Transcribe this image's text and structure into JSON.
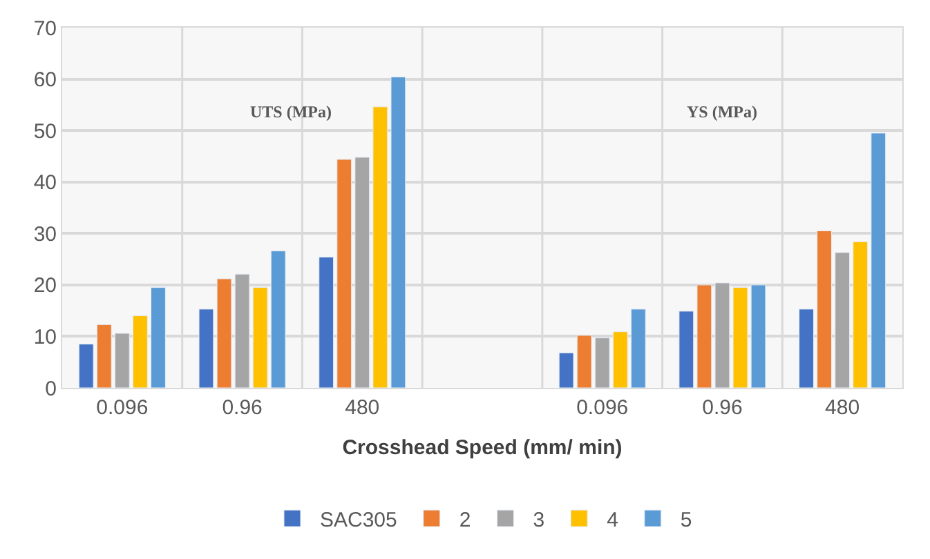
{
  "chart_data": {
    "type": "bar",
    "xlabel": "Crosshead Speed (mm/ min)",
    "categories": [
      "0.096",
      "0.96",
      "480",
      null,
      "0.096",
      "0.96",
      "480"
    ],
    "series": [
      {
        "name": "SAC305",
        "color": "#4472c4",
        "values": [
          8.5,
          15.3,
          25.4,
          null,
          6.8,
          14.9,
          15.3
        ]
      },
      {
        "name": "2",
        "color": "#ed7d31",
        "values": [
          12.3,
          21.2,
          44.4,
          null,
          10.2,
          20.0,
          30.5
        ]
      },
      {
        "name": "3",
        "color": "#a5a5a5",
        "values": [
          10.6,
          22.1,
          44.8,
          null,
          9.7,
          20.4,
          26.3
        ]
      },
      {
        "name": "4",
        "color": "#ffc000",
        "values": [
          14.0,
          19.5,
          54.6,
          null,
          10.9,
          19.5,
          28.4
        ]
      },
      {
        "name": "5",
        "color": "#5b9bd5",
        "values": [
          19.5,
          26.6,
          60.4,
          null,
          15.3,
          20.0,
          49.5
        ]
      }
    ],
    "ylim": [
      0,
      70
    ],
    "yticks": [
      0,
      10,
      20,
      30,
      40,
      50,
      60,
      70
    ],
    "annotations": [
      "UTS (MPa)",
      "YS (MPa)"
    ],
    "grid": true,
    "legend": "bottom"
  }
}
